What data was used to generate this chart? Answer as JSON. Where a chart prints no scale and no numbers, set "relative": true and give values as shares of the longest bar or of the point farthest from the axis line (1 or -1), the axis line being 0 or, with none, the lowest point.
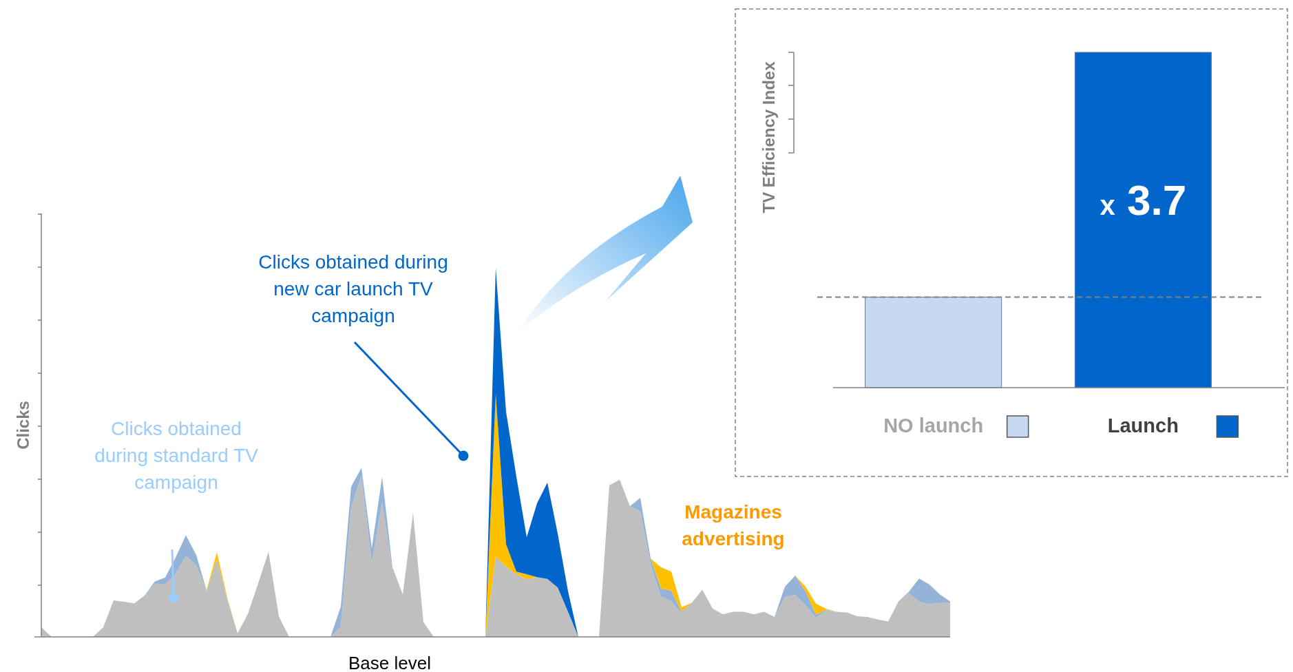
{
  "chart_data": [
    {
      "type": "area",
      "stacked": true,
      "relative": true,
      "xlabel": "Base level",
      "ylabel": "Clicks",
      "categories": [
        null,
        null,
        null,
        null,
        null,
        null,
        null,
        null,
        null,
        null,
        null,
        null,
        null,
        null,
        null,
        null,
        null,
        null,
        null,
        null,
        null,
        null,
        null,
        null,
        null,
        null,
        null,
        null,
        null,
        null,
        null,
        null,
        null,
        null,
        null,
        null,
        null,
        null,
        null,
        null,
        null,
        null,
        null,
        null,
        null,
        null,
        null,
        null,
        null,
        null,
        null,
        null,
        null,
        null,
        null,
        null,
        null,
        null,
        null,
        null,
        null,
        null,
        null,
        null,
        null,
        null,
        null,
        null,
        null,
        null,
        null,
        null,
        null,
        null,
        null,
        null,
        null,
        null,
        null,
        null,
        null,
        null,
        null,
        null,
        null,
        null,
        null,
        null,
        null
      ],
      "series": [
        {
          "color": "#bfbfbf",
          "values": [
            0.026,
            0,
            0,
            0,
            0,
            0,
            0.026,
            0.099,
            0.095,
            0.091,
            0.112,
            0.144,
            0.143,
            0.171,
            0.219,
            0.195,
            0.125,
            0.211,
            0.103,
            0.01,
            0.062,
            0.145,
            0.231,
            0.055,
            0,
            0,
            0,
            0,
            0,
            0.028,
            0.352,
            0.436,
            0.2,
            0.364,
            0.182,
            0.115,
            0.336,
            0.04,
            0,
            0,
            0,
            0,
            0,
            0,
            0.217,
            0.19,
            0.17,
            0.156,
            0.162,
            0.157,
            0.134,
            0.068,
            0,
            0,
            0,
            0.411,
            0.426,
            0.354,
            0.34,
            0.196,
            0.11,
            0.096,
            0.064,
            0.093,
            0.128,
            0.077,
            0.061,
            0.068,
            0.068,
            0.061,
            0.068,
            0.054,
            0.108,
            0.114,
            0.086,
            0.052,
            0.072,
            0.068,
            0.066,
            0.056,
            0.054,
            0.047,
            0.042,
            0.096,
            0.119,
            0.095,
            0.088,
            0.092,
            0.092
          ]
        },
        {
          "color": "#95b3d7",
          "values": [
            0,
            0,
            0,
            0,
            0,
            0,
            0,
            0,
            0,
            0,
            0,
            0.006,
            0.018,
            0.044,
            0.056,
            0.027,
            0,
            0,
            0,
            0,
            0,
            0,
            0,
            0,
            0,
            0,
            0,
            0,
            0,
            0.054,
            0.055,
            0.022,
            0.04,
            0.07,
            0.006,
            0,
            0,
            0,
            0,
            0,
            0,
            0,
            0,
            0,
            0,
            0,
            0,
            0,
            0,
            0,
            0,
            0,
            0,
            0,
            0,
            0,
            0,
            0,
            0.037,
            0.016,
            0.021,
            0.029,
            0.004,
            0,
            0,
            0,
            0,
            0,
            0,
            0,
            0,
            0,
            0.028,
            0.052,
            0.038,
            0.008,
            0.002,
            0,
            0,
            0,
            0,
            0,
            0,
            0,
            0.003,
            0.063,
            0.054,
            0.023,
            0.004
          ]
        },
        {
          "color": "#ffc000",
          "values": [
            0,
            0,
            0,
            0,
            0,
            0,
            0,
            0,
            0,
            0,
            0,
            0,
            0,
            0,
            0,
            0,
            0.002,
            0.018,
            0.004,
            0,
            0,
            0,
            0,
            0,
            0,
            0,
            0,
            0,
            0,
            0,
            0,
            0,
            0,
            0,
            0,
            0,
            0,
            0,
            0,
            0,
            0,
            0,
            0,
            0,
            0.441,
            0.061,
            0.007,
            0.014,
            0,
            0,
            0,
            0,
            0,
            0,
            0,
            0,
            0,
            0,
            0,
            0,
            0.058,
            0.052,
            0.012,
            0,
            0,
            0,
            0,
            0,
            0,
            0,
            0,
            0,
            0,
            0,
            0.012,
            0.03,
            0.002,
            0,
            0,
            0,
            0,
            0,
            0,
            0,
            0,
            0,
            0,
            0,
            0
          ]
        },
        {
          "color": "#0066cc",
          "values": [
            0,
            0,
            0,
            0,
            0,
            0,
            0,
            0,
            0,
            0,
            0,
            0,
            0,
            0,
            0,
            0,
            0,
            0,
            0,
            0,
            0,
            0,
            0,
            0,
            0,
            0,
            0,
            0,
            0,
            0,
            0,
            0,
            0,
            0,
            0,
            0,
            0,
            0,
            0,
            0,
            0,
            0,
            0,
            0,
            0.342,
            0.359,
            0.257,
            0.1,
            0.2,
            0.261,
            0.146,
            0.056,
            0,
            0,
            0,
            0,
            0,
            0,
            0,
            0,
            0,
            0,
            0,
            0,
            0,
            0,
            0,
            0,
            0,
            0,
            0,
            0,
            0,
            0,
            0,
            0,
            0,
            0,
            0,
            0,
            0,
            0,
            0,
            0,
            0,
            0,
            0,
            0,
            0
          ]
        }
      ],
      "annotations": [
        "Clicks obtained during standard TV campaign",
        "Clicks obtained during new car launch TV campaign",
        "Magazines advertising"
      ]
    },
    {
      "type": "bar",
      "relative": true,
      "ylabel": "TV Efficiency Index",
      "categories": [
        "NO launch",
        "Launch"
      ],
      "values": [
        0.27,
        1
      ],
      "colors": [
        "#c6d9f1",
        "#0066cc"
      ],
      "ref_lines": [
        {
          "axis": "y",
          "value": 0.27,
          "color": "#808080",
          "line_style": "dashed"
        }
      ],
      "annotations": [
        "x 3.7"
      ]
    }
  ]
}
